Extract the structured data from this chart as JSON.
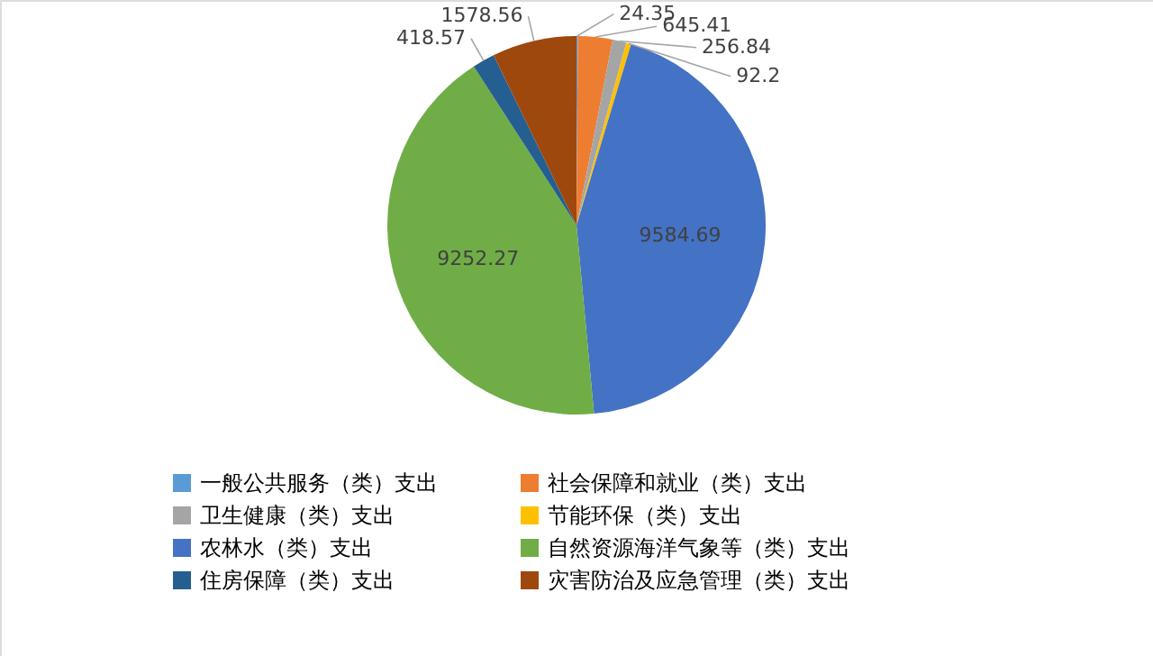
{
  "chart_data": {
    "type": "pie",
    "categories": [
      "一般公共服务（类）支出",
      "社会保障和就业（类）支出",
      "卫生健康（类）支出",
      "节能环保（类）支出",
      "农林水（类）支出",
      "自然资源海洋气象等（类）支出",
      "住房保障（类）支出",
      "灾害防治及应急管理（类）支出"
    ],
    "values": [
      24.35,
      645.41,
      256.84,
      92.2,
      9584.69,
      9252.27,
      418.57,
      1578.56
    ],
    "colors": [
      "#5b9bd5",
      "#ed7d31",
      "#a5a5a5",
      "#ffc000",
      "#4472c4",
      "#70ad47",
      "#255e91",
      "#9e480e"
    ],
    "data_labels": true,
    "legend": "bottom"
  }
}
